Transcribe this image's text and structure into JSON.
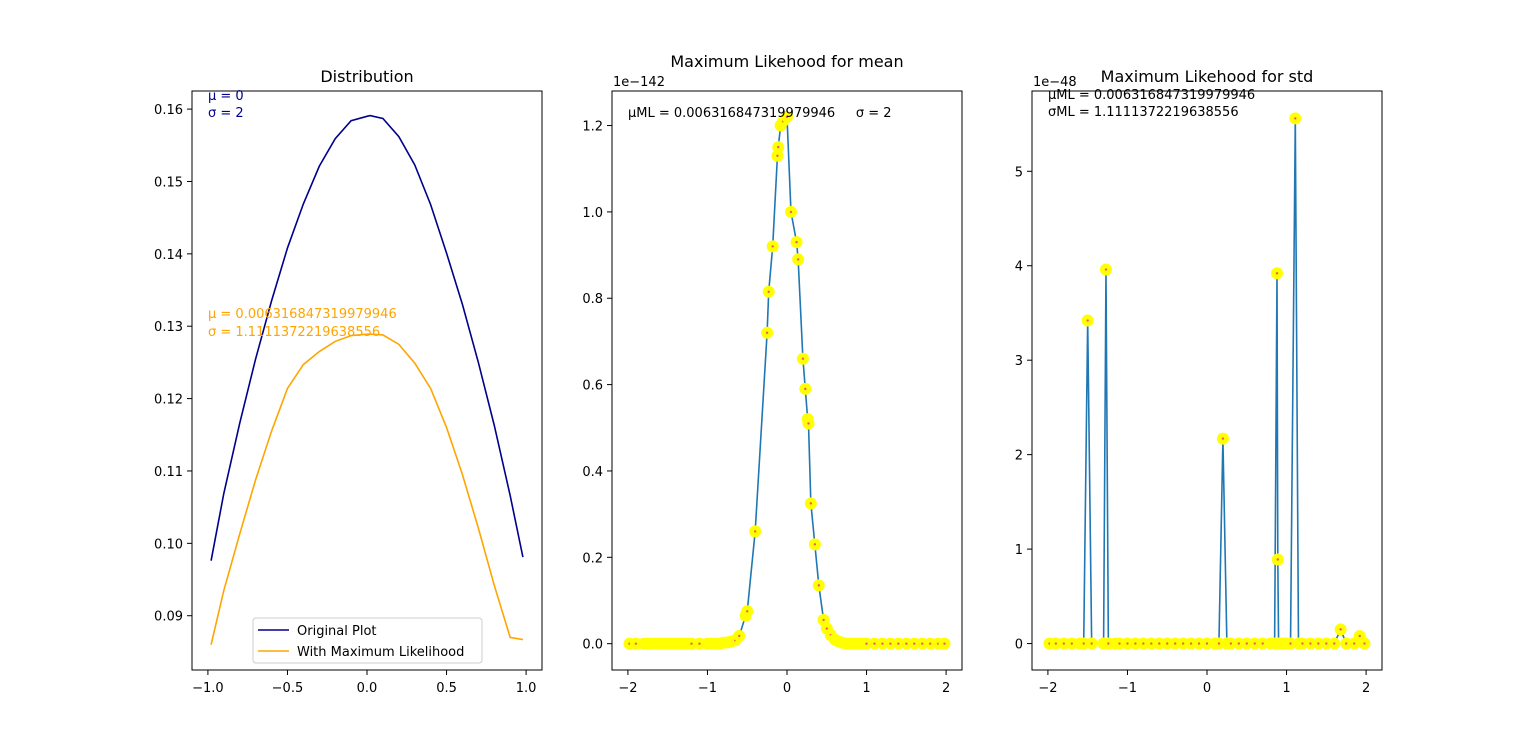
{
  "chart_data": [
    {
      "type": "line",
      "title": "Distribution",
      "xlim": [
        -1.1,
        1.1
      ],
      "ylim": [
        0.0825,
        0.1625
      ],
      "x_ticks": [
        -1.0,
        -0.5,
        0.0,
        0.5,
        1.0
      ],
      "x_tick_labels": [
        "−1.0",
        "−0.5",
        "0.0",
        "0.5",
        "1.0"
      ],
      "y_ticks": [
        0.09,
        0.1,
        0.11,
        0.12,
        0.13,
        0.14,
        0.15,
        0.16
      ],
      "y_tick_labels": [
        "0.09",
        "0.10",
        "0.11",
        "0.12",
        "0.13",
        "0.14",
        "0.15",
        "0.16"
      ],
      "legend": {
        "placement": "lower-center",
        "entries": [
          "Original Plot",
          "With Maximum Likelihood"
        ]
      },
      "annotations": [
        {
          "text": "μ = 0",
          "color": "#00008b"
        },
        {
          "text": "σ = 2",
          "color": "#00008b"
        },
        {
          "text": "μ = 0.006316847319979946",
          "color": "#ffa500"
        },
        {
          "text": "σ = 1.1111372219638556",
          "color": "#ffa500"
        }
      ],
      "series": [
        {
          "name": "Original Plot",
          "color": "#00008b",
          "x": [
            -0.98,
            -0.9,
            -0.8,
            -0.7,
            -0.6,
            -0.5,
            -0.4,
            -0.3,
            -0.2,
            -0.1,
            0.0,
            0.02,
            0.1,
            0.2,
            0.3,
            0.4,
            0.5,
            0.6,
            0.7,
            0.8,
            0.9,
            0.98
          ],
          "y": [
            0.0976,
            0.1069,
            0.1166,
            0.1255,
            0.1335,
            0.1408,
            0.1469,
            0.1521,
            0.1559,
            0.1584,
            0.159,
            0.1591,
            0.1587,
            0.1562,
            0.1523,
            0.1468,
            0.1401,
            0.133,
            0.125,
            0.1163,
            0.1066,
            0.0981
          ]
        },
        {
          "name": "With Maximum Likelihood",
          "color": "#ffa500",
          "x": [
            -0.98,
            -0.9,
            -0.8,
            -0.7,
            -0.6,
            -0.5,
            -0.4,
            -0.3,
            -0.2,
            -0.1,
            0.0,
            0.02,
            0.1,
            0.2,
            0.3,
            0.4,
            0.5,
            0.6,
            0.7,
            0.8,
            0.9,
            0.98
          ],
          "y": [
            0.086,
            0.0935,
            0.1013,
            0.1088,
            0.1155,
            0.1214,
            0.1247,
            0.1265,
            0.1279,
            0.1287,
            0.1289,
            0.1289,
            0.1288,
            0.1275,
            0.1249,
            0.1214,
            0.116,
            0.1095,
            0.1021,
            0.0942,
            0.087,
            0.0867
          ]
        }
      ]
    },
    {
      "type": "line",
      "title": "Maximum Likehood for mean",
      "xlim": [
        -2.2,
        2.2
      ],
      "ylim": [
        -0.061,
        1.28
      ],
      "x_ticks": [
        -2,
        -1,
        0,
        1,
        2
      ],
      "x_tick_labels": [
        "−2",
        "−1",
        "0",
        "1",
        "2"
      ],
      "y_ticks": [
        0.0,
        0.2,
        0.4,
        0.6,
        0.8,
        1.0,
        1.2
      ],
      "y_tick_labels": [
        "0.0",
        "0.2",
        "0.4",
        "0.6",
        "0.8",
        "1.0",
        "1.2"
      ],
      "offset_text": "1e−142",
      "annotations": [
        {
          "text": "μML = 0.006316847319979946     σ = 2",
          "color": "#000000"
        }
      ],
      "series": [
        {
          "color": "#1f77b4",
          "marker_color": "#ffff00",
          "x": [
            -1.98,
            -1.9,
            -1.8,
            -1.75,
            -1.7,
            -1.65,
            -1.6,
            -1.55,
            -1.5,
            -1.45,
            -1.4,
            -1.35,
            -1.3,
            -1.25,
            -1.2,
            -1.1,
            -1.0,
            -0.95,
            -0.9,
            -0.85,
            -0.8,
            -0.75,
            -0.7,
            -0.65,
            -0.6,
            -0.52,
            -0.5,
            -0.4,
            -0.25,
            -0.23,
            -0.18,
            -0.12,
            -0.11,
            -0.08,
            -0.05,
            0.0,
            0.05,
            0.12,
            0.14,
            0.2,
            0.23,
            0.26,
            0.27,
            0.3,
            0.35,
            0.4,
            0.46,
            0.5,
            0.55,
            0.6,
            0.65,
            0.7,
            0.75,
            0.8,
            0.85,
            0.9,
            0.95,
            1.0,
            1.1,
            1.2,
            1.3,
            1.4,
            1.5,
            1.6,
            1.7,
            1.8,
            1.9,
            1.98
          ],
          "y": [
            0.0,
            0.0,
            0.0,
            0.0,
            0.0,
            0.0,
            0.0,
            0.0,
            0.0,
            0.0,
            0.0,
            0.0,
            0.0,
            0.0,
            0.0,
            0.0,
            0.0,
            0.0,
            0.0,
            0.0,
            0.002,
            0.003,
            0.005,
            0.008,
            0.018,
            0.065,
            0.075,
            0.26,
            0.72,
            0.815,
            0.92,
            1.13,
            1.15,
            1.2,
            1.21,
            1.22,
            1.0,
            0.93,
            0.89,
            0.66,
            0.59,
            0.52,
            0.51,
            0.325,
            0.23,
            0.135,
            0.055,
            0.035,
            0.02,
            0.01,
            0.005,
            0.002,
            0.0,
            0.0,
            0.0,
            0.0,
            0.0,
            0.0,
            0.0,
            0.0,
            0.0,
            0.0,
            0.0,
            0.0,
            0.0,
            0.0,
            0.0,
            0.0
          ]
        }
      ]
    },
    {
      "type": "line",
      "title": "Maximum Likehood for std",
      "xlim": [
        -2.2,
        2.2
      ],
      "ylim": [
        -0.28,
        5.85
      ],
      "x_ticks": [
        -2,
        -1,
        0,
        1,
        2
      ],
      "x_tick_labels": [
        "−2",
        "−1",
        "0",
        "1",
        "2"
      ],
      "y_ticks": [
        0,
        1,
        2,
        3,
        4,
        5
      ],
      "y_tick_labels": [
        "0",
        "1",
        "2",
        "3",
        "4",
        "5"
      ],
      "offset_text": "1e−48",
      "annotations": [
        {
          "text": "μML = 0.006316847319979946",
          "color": "#000000"
        },
        {
          "text": "σML = 1.1111372219638556",
          "color": "#000000"
        }
      ],
      "series": [
        {
          "color": "#1f77b4",
          "marker_color": "#ffff00",
          "x": [
            -1.98,
            -1.9,
            -1.8,
            -1.7,
            -1.6,
            -1.55,
            -1.5,
            -1.45,
            -1.3,
            -1.27,
            -1.24,
            -1.15,
            -1.1,
            -1.0,
            -0.9,
            -0.8,
            -0.7,
            -0.6,
            -0.5,
            -0.4,
            -0.3,
            -0.2,
            -0.1,
            0.0,
            0.1,
            0.15,
            0.2,
            0.25,
            0.3,
            0.4,
            0.5,
            0.6,
            0.7,
            0.8,
            0.85,
            0.88,
            0.89,
            0.9,
            0.95,
            1.0,
            1.05,
            1.11,
            1.15,
            1.2,
            1.3,
            1.4,
            1.5,
            1.6,
            1.68,
            1.75,
            1.85,
            1.92,
            1.98
          ],
          "y": [
            0.0,
            0.0,
            0.0,
            0.0,
            0.0,
            0.0,
            3.42,
            0.0,
            0.0,
            3.96,
            0.0,
            0.0,
            0.0,
            0.0,
            0.0,
            0.0,
            0.0,
            0.0,
            0.0,
            0.0,
            0.0,
            0.0,
            0.0,
            0.0,
            0.0,
            0.0,
            2.17,
            0.0,
            0.0,
            0.0,
            0.0,
            0.0,
            0.0,
            0.0,
            0.0,
            3.92,
            0.89,
            0.0,
            0.0,
            0.0,
            0.0,
            5.56,
            0.0,
            0.0,
            0.0,
            0.0,
            0.0,
            0.0,
            0.15,
            0.0,
            0.0,
            0.08,
            0.0
          ]
        }
      ]
    }
  ]
}
